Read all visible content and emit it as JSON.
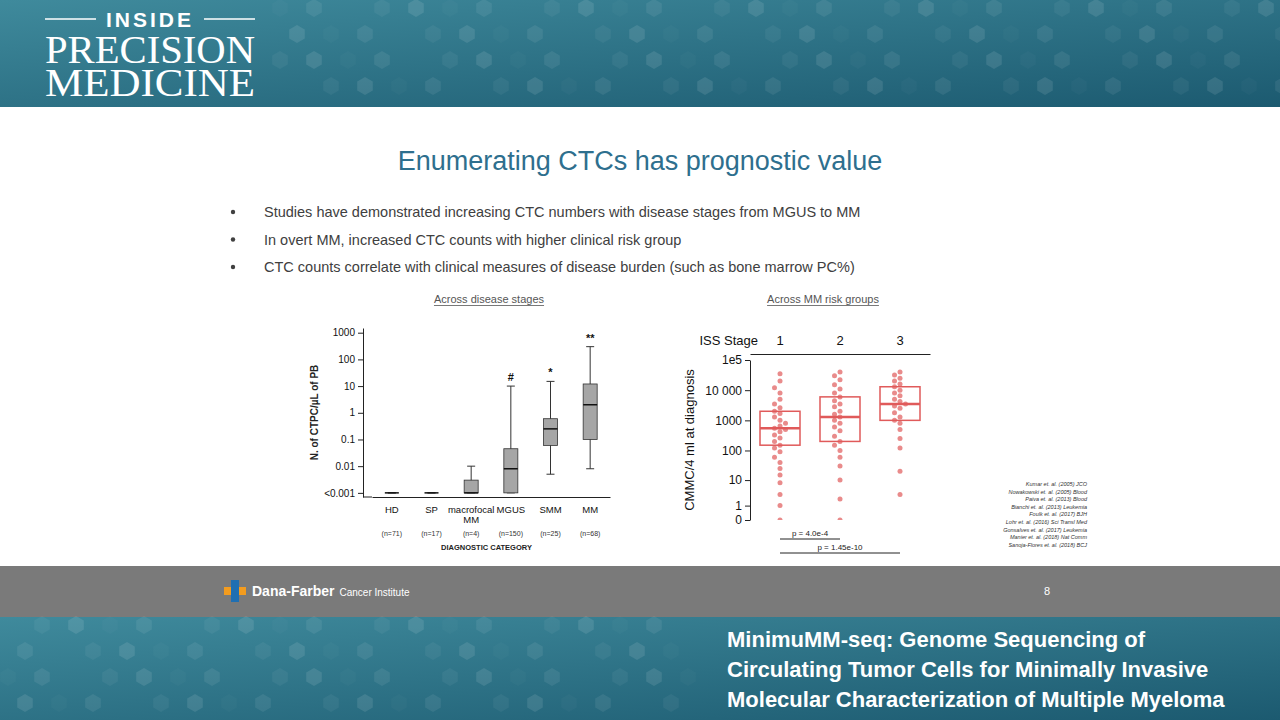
{
  "header": {
    "brand": [
      "INSIDE",
      "PRECISION",
      "MEDICINE"
    ]
  },
  "slide": {
    "title": "Enumerating CTCs has prognostic value",
    "bullets": [
      "Studies have demonstrated increasing CTC numbers with disease stages from MGUS to MM",
      "In overt MM, increased CTC counts with higher clinical risk group",
      "CTC counts correlate with clinical measures of disease burden (such as bone marrow PC%)"
    ],
    "references": [
      "Kumar et. al. (2005) JCO",
      "Nowakowski et. al. (2005) Blood",
      "Paiva et. al. (2013) Blood",
      "Bianchi et. al. (2013) Leukemia",
      "Foulk et. al. (2017) BJH",
      "Lohr et. al. (2016) Sci Transl Med",
      "Gonsalves et. al. (2017) Leukemia",
      "Manier et. al. (2018) Nat Comm",
      "Sanoja-Flores et. al. (2018) BCJ"
    ],
    "footer": {
      "organization": "Dana-Farber",
      "unit": "Cancer Institute",
      "page": 8
    }
  },
  "caption": [
    "MinimuMM-seq: Genome Sequencing of",
    "Circulating Tumor Cells for Minimally Invasive",
    "Molecular Characterization of Multiple Myeloma"
  ],
  "chart_data": [
    {
      "type": "box",
      "subtitle": "Across disease stages",
      "y_label": "N. of CTPC/µL of PB",
      "x_label": "DIAGNOSTIC CATEGORY",
      "categories": [
        "HD",
        "SP",
        "macrofocal MM",
        "MGUS",
        "SMM",
        "MM"
      ],
      "n_labels": [
        "(n=71)",
        "(n=17)",
        "(n=4)",
        "(n=150)",
        "(n=25)",
        "(n=68)"
      ],
      "whisker_low": [
        0.001,
        0.001,
        0.001,
        0.001,
        0.005,
        0.008
      ],
      "q1": [
        0.001,
        0.001,
        0.001,
        0.001,
        0.06,
        0.1
      ],
      "median": [
        0.001,
        0.001,
        0.001,
        0.008,
        0.25,
        2
      ],
      "q3": [
        0.001,
        0.001,
        0.003,
        0.045,
        0.6,
        12
      ],
      "whisker_high": [
        0.001,
        0.001,
        0.01,
        10,
        15,
        300
      ],
      "annotations": [
        {
          "category": "MGUS",
          "text": "#"
        },
        {
          "category": "SMM",
          "text": "*"
        },
        {
          "category": "MM",
          "text": "**"
        }
      ],
      "log": "y",
      "ylim": [
        0.0007,
        1500
      ],
      "yticks": [
        {
          "value": 0.001,
          "label": "<0.001"
        },
        0.01,
        0.1,
        1,
        10,
        100,
        1000
      ],
      "color": "#a6a6a6"
    },
    {
      "type": "box",
      "subtitle": "Across MM risk groups",
      "x_label": "ISS Stage",
      "y_label": "CMMC/4 ml at diagnosis",
      "categories": [
        "1",
        "2",
        "3"
      ],
      "q1": [
        150,
        200,
        1000
      ],
      "median": [
        550,
        1300,
        3500
      ],
      "q3": [
        2000,
        6000,
        13000
      ],
      "points": [
        [
          0,
          1,
          3,
          8,
          15,
          25,
          40,
          60,
          90,
          120,
          150,
          200,
          260,
          330,
          420,
          500,
          550,
          650,
          800,
          1000,
          1300,
          1700,
          2000,
          2600,
          3500,
          5000,
          8000,
          12000,
          20000,
          35000
        ],
        [
          0,
          2,
          10,
          30,
          60,
          100,
          150,
          200,
          300,
          450,
          600,
          800,
          1000,
          1300,
          1600,
          2000,
          2800,
          3500,
          4500,
          6000,
          8000,
          11000,
          15000,
          22000,
          30000,
          40000
        ],
        [
          3,
          20,
          120,
          250,
          500,
          800,
          1000,
          1300,
          1800,
          2500,
          3000,
          3500,
          4200,
          5000,
          6500,
          8000,
          10000,
          13000,
          16000,
          20000,
          25000,
          32000,
          40000
        ]
      ],
      "comparisons": [
        {
          "groups": [
            "1",
            "2"
          ],
          "label": "p = 4.0e-4"
        },
        {
          "groups": [
            "1",
            "3"
          ],
          "label": "p = 1.45e-10"
        }
      ],
      "log": "y",
      "ylim": [
        0,
        100000
      ],
      "yticks": [
        0,
        1,
        10,
        100,
        1000,
        {
          "value": 10000,
          "label": "10 000"
        },
        {
          "value": 100000,
          "label": "1e5"
        }
      ],
      "color": "#e05a5a"
    }
  ]
}
